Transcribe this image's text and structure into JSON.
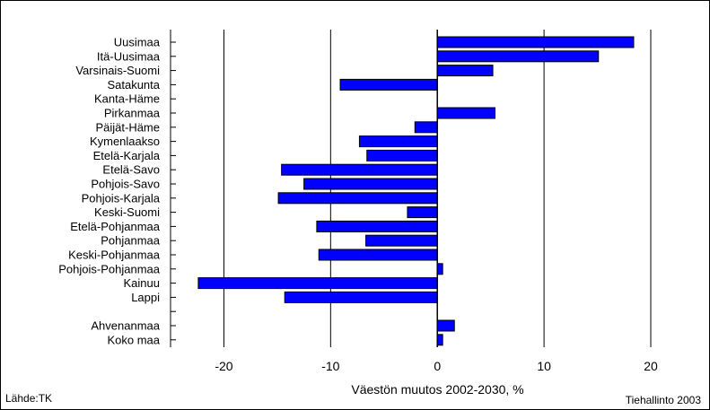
{
  "chart_data": {
    "type": "bar",
    "orientation": "horizontal",
    "categories": [
      "Uusimaa",
      "Itä-Uusimaa",
      "Varsinais-Suomi",
      "Satakunta",
      "Kanta-Häme",
      "Pirkanmaa",
      "Päijät-Häme",
      "Kymenlaakso",
      "Etelä-Karjala",
      "Etelä-Savo",
      "Pohjois-Savo",
      "Pohjois-Karjala",
      "Keski-Suomi",
      "Etelä-Pohjanmaa",
      "Pohjanmaa",
      "Keski-Pohjanmaa",
      "Pohjois-Pohjanmaa",
      "Kainuu",
      "Lappi",
      "",
      "Ahvenanmaa",
      "Koko maa"
    ],
    "values": [
      18.4,
      15.1,
      5.2,
      -9.1,
      0,
      5.4,
      -2.1,
      -7.3,
      -6.6,
      -14.6,
      -12.5,
      -14.9,
      -2.8,
      -11.3,
      -6.7,
      -11.1,
      0.5,
      -22.4,
      -14.3,
      null,
      1.6,
      0.5
    ],
    "xlabel": "Väestön muutos 2002-2030, %",
    "xlim": [
      -25,
      20
    ],
    "xticks": [
      -20,
      -10,
      0,
      10,
      20
    ],
    "bar_color": "#0000ff",
    "grid": "vertical"
  },
  "footer": {
    "source": "Lähde:TK",
    "credit": "Tiehallinto 2003"
  }
}
